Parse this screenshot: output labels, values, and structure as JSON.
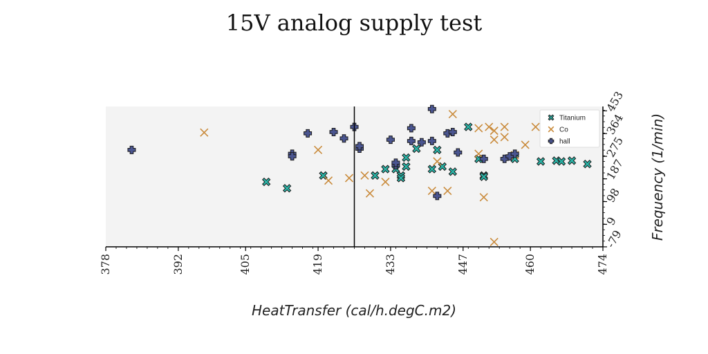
{
  "chart_data": {
    "type": "scatter",
    "title": "15V analog supply test",
    "xlabel": "HeatTransfer (cal/h.degC.m2)",
    "ylabel": "Frequency (1/min)",
    "xlim": [
      378,
      474
    ],
    "ylim": [
      -79,
      470
    ],
    "x_ticks": [
      "378",
      "392",
      "405",
      "419",
      "433",
      "447",
      "460",
      "474"
    ],
    "y_ticks": [
      "-79",
      "9",
      "98",
      "187",
      "275",
      "364",
      "453"
    ],
    "y_axis_side": "right",
    "vline_x": 426,
    "grid": false,
    "legend_position": "top-right",
    "series": [
      {
        "name": "Titanium",
        "marker": "filled-x",
        "color": "#2ab5a8",
        "points": [
          [
            409,
            175
          ],
          [
            413,
            150
          ],
          [
            420,
            200
          ],
          [
            430,
            200
          ],
          [
            432,
            225
          ],
          [
            434,
            225
          ],
          [
            435,
            200
          ],
          [
            435,
            190
          ],
          [
            436,
            270
          ],
          [
            436,
            235
          ],
          [
            438,
            305
          ],
          [
            441,
            225
          ],
          [
            442,
            300
          ],
          [
            443,
            235
          ],
          [
            445,
            215
          ],
          [
            448,
            390
          ],
          [
            450,
            265
          ],
          [
            451,
            200
          ],
          [
            451,
            195
          ],
          [
            457,
            265
          ],
          [
            462,
            255
          ],
          [
            465,
            258
          ],
          [
            466,
            255
          ],
          [
            468,
            258
          ],
          [
            471,
            245
          ]
        ]
      },
      {
        "name": "Co",
        "marker": "x",
        "color": "#c98a3a",
        "points": [
          [
            397,
            368
          ],
          [
            419,
            300
          ],
          [
            421,
            180
          ],
          [
            425,
            190
          ],
          [
            428,
            200
          ],
          [
            429,
            130
          ],
          [
            432,
            175
          ],
          [
            441,
            140
          ],
          [
            442,
            255
          ],
          [
            444,
            140
          ],
          [
            445,
            440
          ],
          [
            450,
            285
          ],
          [
            450,
            385
          ],
          [
            451,
            115
          ],
          [
            452,
            390
          ],
          [
            453,
            375
          ],
          [
            453,
            340
          ],
          [
            455,
            350
          ],
          [
            455,
            390
          ],
          [
            457,
            280
          ],
          [
            459,
            320
          ],
          [
            461,
            390
          ],
          [
            453,
            -60
          ]
        ]
      },
      {
        "name": "hall",
        "marker": "filled-plus",
        "color": "#4a5590",
        "points": [
          [
            383,
            300
          ],
          [
            414,
            285
          ],
          [
            414,
            275
          ],
          [
            417,
            365
          ],
          [
            422,
            370
          ],
          [
            424,
            345
          ],
          [
            426,
            390
          ],
          [
            427,
            305
          ],
          [
            427,
            315
          ],
          [
            433,
            340
          ],
          [
            434,
            240
          ],
          [
            434,
            250
          ],
          [
            437,
            385
          ],
          [
            437,
            335
          ],
          [
            439,
            330
          ],
          [
            441,
            460
          ],
          [
            441,
            335
          ],
          [
            442,
            120
          ],
          [
            444,
            365
          ],
          [
            445,
            370
          ],
          [
            446,
            290
          ],
          [
            451,
            265
          ],
          [
            455,
            265
          ],
          [
            456,
            275
          ],
          [
            457,
            285
          ]
        ]
      }
    ]
  }
}
